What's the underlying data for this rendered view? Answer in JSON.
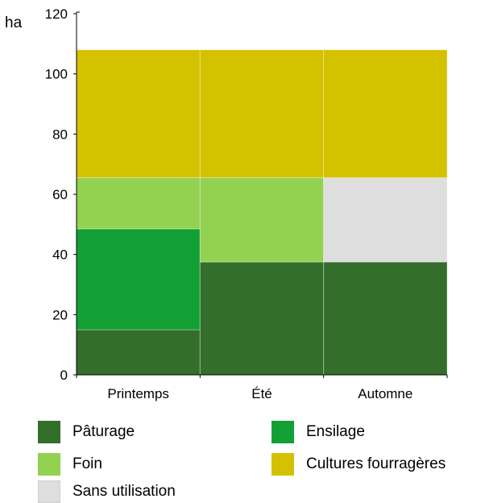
{
  "chart_data": {
    "type": "bar",
    "stacked": true,
    "ylabel": "ha",
    "ylim": [
      0,
      120
    ],
    "yticks": [
      0,
      20,
      40,
      60,
      80,
      100,
      120
    ],
    "grid": false,
    "legend_position": "bottom",
    "categories": [
      "Printemps",
      "Été",
      "Automne"
    ],
    "series": [
      {
        "name": "Pâturage",
        "color": "#336e2b",
        "values": [
          15,
          37.5,
          37.5
        ]
      },
      {
        "name": "Ensilage",
        "color": "#12a035",
        "values": [
          33.5,
          0,
          0
        ]
      },
      {
        "name": "Foin",
        "color": "#93d150",
        "values": [
          17,
          28,
          0
        ]
      },
      {
        "name": "Sans utilisation",
        "color": "#dedede",
        "values": [
          0,
          0,
          28
        ]
      },
      {
        "name": "Cultures fourragères",
        "color": "#d4c100",
        "values": [
          42.5,
          42.5,
          42.5
        ]
      }
    ]
  },
  "legend": [
    {
      "label": "Pâturage",
      "color": "#336e2b"
    },
    {
      "label": "Ensilage",
      "color": "#12a035"
    },
    {
      "label": "Foin",
      "color": "#93d150"
    },
    {
      "label": "Cultures fourragères",
      "color": "#d4c100"
    },
    {
      "label": "Sans utilisation",
      "color": "#dedede"
    }
  ]
}
